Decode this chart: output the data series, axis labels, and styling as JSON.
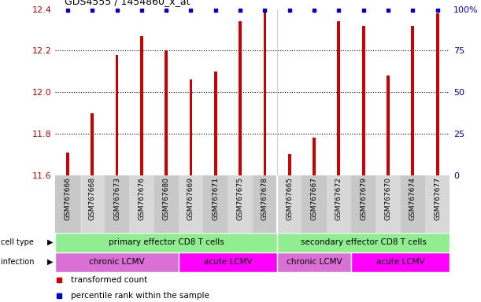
{
  "title": "GDS4555 / 1454860_x_at",
  "samples": [
    "GSM767666",
    "GSM767668",
    "GSM767673",
    "GSM767676",
    "GSM767680",
    "GSM767669",
    "GSM767671",
    "GSM767675",
    "GSM767678",
    "GSM767665",
    "GSM767667",
    "GSM767672",
    "GSM767679",
    "GSM767670",
    "GSM767674",
    "GSM767677"
  ],
  "transformed_counts": [
    11.71,
    11.9,
    12.18,
    12.27,
    12.2,
    12.06,
    12.1,
    12.34,
    12.39,
    11.7,
    11.78,
    12.34,
    12.32,
    12.08,
    12.32,
    12.38
  ],
  "bar_color": "#cc0000",
  "percentile_color": "#0000cc",
  "ymin": 11.6,
  "ymax": 12.4,
  "yticks": [
    11.6,
    11.8,
    12.0,
    12.2,
    12.4
  ],
  "right_yticks": [
    0,
    25,
    50,
    75,
    100
  ],
  "right_yticklabels": [
    "0",
    "25",
    "50",
    "75",
    "100%"
  ],
  "cell_type_labels": [
    "primary effector CD8 T cells",
    "secondary effector CD8 T cells"
  ],
  "cell_type_color": "#90ee90",
  "infection_labels": [
    "chronic LCMV",
    "acute LCMV",
    "chronic LCMV",
    "acute LCMV"
  ],
  "infection_colors_alt": [
    "#da70d6",
    "#ff00ff",
    "#da70d6",
    "#ff00ff"
  ],
  "background_color": "#ffffff",
  "label_color_red": "#cc0000",
  "label_color_blue": "#0000cc",
  "bar_width": 0.12
}
